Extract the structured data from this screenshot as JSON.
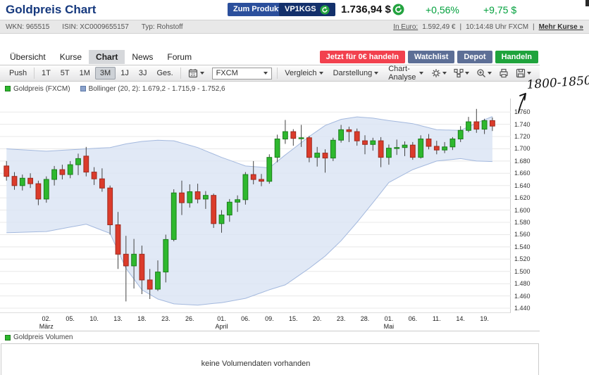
{
  "header": {
    "title": "Goldpreis Chart",
    "zum_produkt": "Zum Produkt",
    "wkn_code": "VP1KGS",
    "price": "1.736,94 $",
    "change_pct": "+0,56%",
    "change_abs": "+9,75 $"
  },
  "infobar": {
    "wkn": "WKN: 965515",
    "isin": "ISIN: XC0009655157",
    "typ": "Typ: Rohstoff",
    "euro_label": "In Euro:",
    "euro_value": "1.592,49 €",
    "divider": "|",
    "time": "10:14:48 Uhr FXCM",
    "more": "Mehr Kurse »"
  },
  "tabs": {
    "items": [
      "Übersicht",
      "Kurse",
      "Chart",
      "News",
      "Forum"
    ],
    "active": "Chart"
  },
  "actions": {
    "trade_now": "Jetzt für 0€ handeln",
    "watchlist": "Watchlist",
    "depot": "Depot",
    "handeln": "Handeln"
  },
  "toolbar": {
    "push": "Push",
    "ranges": [
      "1T",
      "5T",
      "1M",
      "3M",
      "1J",
      "3J",
      "Ges."
    ],
    "active_range": "3M",
    "calendar_day": "21",
    "exchange": "FXCM",
    "menus": [
      "Vergleich",
      "Darstellung",
      "Chart-Analyse"
    ]
  },
  "legend": {
    "series1": "Goldpreis (FXCM)",
    "series2": "Bollinger (20, 2): 1.679,2 - 1.715,9 - 1.752,6"
  },
  "annotation": {
    "text": "1800-1850"
  },
  "volume": {
    "legend": "Goldpreis Volumen",
    "empty_message": "keine Volumendaten vorhanden"
  },
  "chart_data": {
    "type": "candlestick",
    "title": "Goldpreis (FXCM)",
    "range": "3M",
    "unit": "USD",
    "ylim": [
      1432,
      1782
    ],
    "y_ticks": [
      {
        "v": 1760,
        "label": "1.760"
      },
      {
        "v": 1740,
        "label": "1.740"
      },
      {
        "v": 1720,
        "label": "1.720"
      },
      {
        "v": 1700,
        "label": "1.700"
      },
      {
        "v": 1680,
        "label": "1.680"
      },
      {
        "v": 1660,
        "label": "1.660"
      },
      {
        "v": 1640,
        "label": "1.640"
      },
      {
        "v": 1620,
        "label": "1.620"
      },
      {
        "v": 1600,
        "label": "1.600"
      },
      {
        "v": 1580,
        "label": "1.580"
      },
      {
        "v": 1560,
        "label": "1.560"
      },
      {
        "v": 1540,
        "label": "1.540"
      },
      {
        "v": 1520,
        "label": "1.520"
      },
      {
        "v": 1500,
        "label": "1.500"
      },
      {
        "v": 1480,
        "label": "1.480"
      },
      {
        "v": 1460,
        "label": "1.460"
      },
      {
        "v": 1440,
        "label": "1.440"
      }
    ],
    "x_ticks": [
      {
        "i": 5,
        "label": "02.",
        "month": "März"
      },
      {
        "i": 8,
        "label": "05."
      },
      {
        "i": 11,
        "label": "10."
      },
      {
        "i": 14,
        "label": "13."
      },
      {
        "i": 17,
        "label": "18."
      },
      {
        "i": 20,
        "label": "23."
      },
      {
        "i": 23,
        "label": "26."
      },
      {
        "i": 27,
        "label": "01.",
        "month": "April"
      },
      {
        "i": 30,
        "label": "06."
      },
      {
        "i": 33,
        "label": "09."
      },
      {
        "i": 36,
        "label": "15."
      },
      {
        "i": 39,
        "label": "20."
      },
      {
        "i": 42,
        "label": "23."
      },
      {
        "i": 45,
        "label": "28."
      },
      {
        "i": 48,
        "label": "01.",
        "month": "Mai"
      },
      {
        "i": 51,
        "label": "06."
      },
      {
        "i": 54,
        "label": "11."
      },
      {
        "i": 57,
        "label": "14."
      },
      {
        "i": 60,
        "label": "19."
      }
    ],
    "candle_columns": [
      "date",
      "open",
      "high",
      "low",
      "close"
    ],
    "candles": [
      [
        "24.02.",
        1672,
        1680,
        1648,
        1655
      ],
      [
        "25.02.",
        1655,
        1662,
        1633,
        1640
      ],
      [
        "26.02.",
        1640,
        1658,
        1632,
        1652
      ],
      [
        "27.02.",
        1652,
        1660,
        1636,
        1643
      ],
      [
        "28.02.",
        1643,
        1648,
        1608,
        1618
      ],
      [
        "02.03.",
        1618,
        1655,
        1612,
        1650
      ],
      [
        "03.03.",
        1650,
        1672,
        1640,
        1666
      ],
      [
        "04.03.",
        1666,
        1674,
        1650,
        1658
      ],
      [
        "05.03.",
        1658,
        1680,
        1652,
        1674
      ],
      [
        "06.03.",
        1674,
        1692,
        1657,
        1684
      ],
      [
        "09.03.",
        1688,
        1703,
        1655,
        1662
      ],
      [
        "10.03.",
        1662,
        1670,
        1641,
        1651
      ],
      [
        "11.03.",
        1651,
        1668,
        1630,
        1636
      ],
      [
        "12.03.",
        1636,
        1640,
        1560,
        1576
      ],
      [
        "13.03.",
        1576,
        1597,
        1504,
        1528
      ],
      [
        "16.03.",
        1528,
        1558,
        1451,
        1509
      ],
      [
        "17.03.",
        1509,
        1553,
        1472,
        1528
      ],
      [
        "18.03.",
        1528,
        1542,
        1463,
        1486
      ],
      [
        "19.03.",
        1486,
        1504,
        1455,
        1471
      ],
      [
        "20.03.",
        1471,
        1518,
        1468,
        1499
      ],
      [
        "23.03.",
        1499,
        1560,
        1482,
        1552
      ],
      [
        "24.03.",
        1552,
        1634,
        1549,
        1628
      ],
      [
        "25.03.",
        1628,
        1648,
        1592,
        1612
      ],
      [
        "26.03.",
        1612,
        1642,
        1604,
        1630
      ],
      [
        "27.03.",
        1630,
        1643,
        1611,
        1618
      ],
      [
        "30.03.",
        1618,
        1631,
        1602,
        1624
      ],
      [
        "31.03.",
        1624,
        1627,
        1571,
        1578
      ],
      [
        "01.04.",
        1578,
        1600,
        1563,
        1592
      ],
      [
        "02.04.",
        1592,
        1618,
        1581,
        1613
      ],
      [
        "03.04.",
        1613,
        1624,
        1597,
        1617
      ],
      [
        "06.04.",
        1617,
        1662,
        1609,
        1658
      ],
      [
        "07.04.",
        1658,
        1680,
        1642,
        1650
      ],
      [
        "08.04.",
        1650,
        1659,
        1639,
        1647
      ],
      [
        "09.04.",
        1647,
        1691,
        1643,
        1686
      ],
      [
        "13.04.",
        1686,
        1723,
        1678,
        1716
      ],
      [
        "14.04.",
        1716,
        1747,
        1708,
        1728
      ],
      [
        "15.04.",
        1728,
        1732,
        1705,
        1717
      ],
      [
        "16.04.",
        1717,
        1739,
        1703,
        1718
      ],
      [
        "17.04.",
        1718,
        1721,
        1678,
        1686
      ],
      [
        "20.04.",
        1686,
        1703,
        1671,
        1693
      ],
      [
        "21.04.",
        1693,
        1699,
        1661,
        1685
      ],
      [
        "22.04.",
        1685,
        1718,
        1680,
        1714
      ],
      [
        "23.04.",
        1714,
        1739,
        1710,
        1731
      ],
      [
        "24.04.",
        1731,
        1736,
        1711,
        1728
      ],
      [
        "27.04.",
        1728,
        1733,
        1705,
        1713
      ],
      [
        "28.04.",
        1713,
        1722,
        1691,
        1707
      ],
      [
        "29.04.",
        1707,
        1718,
        1697,
        1713
      ],
      [
        "30.04.",
        1713,
        1719,
        1670,
        1686
      ],
      [
        "01.05.",
        1686,
        1707,
        1674,
        1701
      ],
      [
        "04.05.",
        1701,
        1715,
        1690,
        1702
      ],
      [
        "05.05.",
        1702,
        1712,
        1688,
        1706
      ],
      [
        "06.05.",
        1706,
        1711,
        1682,
        1686
      ],
      [
        "07.05.",
        1686,
        1722,
        1684,
        1716
      ],
      [
        "08.05.",
        1716,
        1724,
        1699,
        1704
      ],
      [
        "11.05.",
        1704,
        1713,
        1691,
        1698
      ],
      [
        "12.05.",
        1698,
        1711,
        1693,
        1703
      ],
      [
        "13.05.",
        1703,
        1719,
        1698,
        1716
      ],
      [
        "14.05.",
        1716,
        1737,
        1711,
        1730
      ],
      [
        "15.05.",
        1730,
        1752,
        1727,
        1744
      ],
      [
        "18.05.",
        1744,
        1765,
        1726,
        1732
      ],
      [
        "19.05.",
        1732,
        1749,
        1724,
        1746
      ],
      [
        "20.05.",
        1746,
        1751,
        1729,
        1737
      ]
    ],
    "bollinger": {
      "label": "Bollinger (20, 2)",
      "last_values": [
        1679.2,
        1715.9,
        1752.6
      ],
      "band_columns": [
        "index",
        "upper",
        "lower"
      ],
      "band_points": [
        [
          0,
          1700,
          1563
        ],
        [
          5,
          1696,
          1565
        ],
        [
          10,
          1700,
          1577
        ],
        [
          13,
          1702,
          1562
        ],
        [
          15,
          1708,
          1505
        ],
        [
          17,
          1712,
          1470
        ],
        [
          19,
          1714,
          1455
        ],
        [
          21,
          1713,
          1447
        ],
        [
          24,
          1702,
          1445
        ],
        [
          27,
          1686,
          1449
        ],
        [
          30,
          1672,
          1456
        ],
        [
          33,
          1669,
          1470
        ],
        [
          35,
          1690,
          1478
        ],
        [
          38,
          1720,
          1505
        ],
        [
          40,
          1738,
          1525
        ],
        [
          42,
          1748,
          1550
        ],
        [
          44,
          1752,
          1580
        ],
        [
          46,
          1750,
          1612
        ],
        [
          48,
          1746,
          1645
        ],
        [
          51,
          1741,
          1666
        ],
        [
          54,
          1731,
          1680
        ],
        [
          57,
          1730,
          1684
        ],
        [
          59,
          1742,
          1680
        ],
        [
          61,
          1752.6,
          1679.2
        ]
      ]
    },
    "colors": {
      "up": "#2EB82E",
      "up_border": "#1C7F1C",
      "down": "#DB3B2B",
      "down_border": "#9E2A1E",
      "band_fill": "#D9E3F4",
      "band_line": "#A4B9DE",
      "grid": "#E8E8E8",
      "wick": "#444444"
    }
  }
}
